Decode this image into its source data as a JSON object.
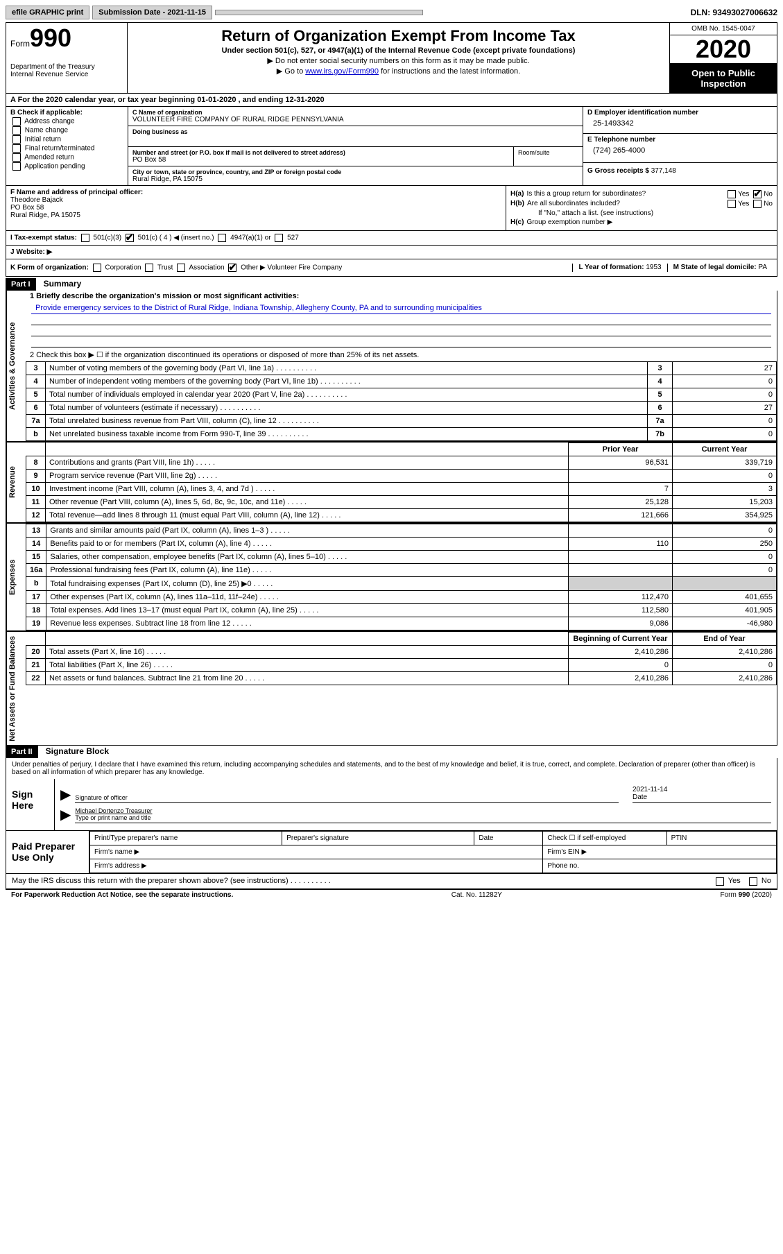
{
  "topbar": {
    "efile_btn": "efile GRAPHIC print",
    "submission_label": "Submission Date - 2021-11-15",
    "dln": "DLN: 93493027006632"
  },
  "header": {
    "form_label": "Form",
    "form_number": "990",
    "dept": "Department of the Treasury\nInternal Revenue Service",
    "title": "Return of Organization Exempt From Income Tax",
    "subtitle": "Under section 501(c), 527, or 4947(a)(1) of the Internal Revenue Code (except private foundations)",
    "note1": "▶ Do not enter social security numbers on this form as it may be made public.",
    "note2_pre": "▶ Go to ",
    "note2_link": "www.irs.gov/Form990",
    "note2_post": " for instructions and the latest information.",
    "omb": "OMB No. 1545-0047",
    "year": "2020",
    "inspection": "Open to Public Inspection"
  },
  "period": "A For the 2020 calendar year, or tax year beginning 01-01-2020     , and ending 12-31-2020",
  "section_b": {
    "label": "B Check if applicable:",
    "opts": [
      "Address change",
      "Name change",
      "Initial return",
      "Final return/terminated",
      "Amended return",
      "Application pending"
    ]
  },
  "section_c": {
    "name_label": "C Name of organization",
    "name": "VOLUNTEER FIRE COMPANY OF RURAL RIDGE PENNSYLVANIA",
    "dba_label": "Doing business as",
    "dba": "",
    "street_label": "Number and street (or P.O. box if mail is not delivered to street address)",
    "street": "PO Box 58",
    "suite_label": "Room/suite",
    "city_label": "City or town, state or province, country, and ZIP or foreign postal code",
    "city": "Rural Ridge, PA  15075"
  },
  "section_d": {
    "ein_label": "D Employer identification number",
    "ein": "25-1493342",
    "phone_label": "E Telephone number",
    "phone": "(724) 265-4000",
    "gross_label": "G Gross receipts $",
    "gross": "377,148"
  },
  "section_f": {
    "label": "F Name and address of principal officer:",
    "name": "Theodore Bajack",
    "street": "PO Box 58",
    "city": "Rural Ridge, PA  15075"
  },
  "section_h": {
    "ha_label": "H(a)",
    "ha_text": "Is this a group return for subordinates?",
    "hb_label": "H(b)",
    "hb_text": "Are all subordinates included?",
    "hb_note": "If \"No,\" attach a list. (see instructions)",
    "hc_label": "H(c)",
    "hc_text": "Group exemption number ▶"
  },
  "section_i": {
    "label": "I   Tax-exempt status:",
    "opts": [
      "501(c)(3)",
      "501(c) ( 4 ) ◀ (insert no.)",
      "4947(a)(1) or",
      "527"
    ]
  },
  "section_j": {
    "label": "J   Website: ▶"
  },
  "section_k": {
    "label": "K Form of organization:",
    "opts": [
      "Corporation",
      "Trust",
      "Association",
      "Other ▶"
    ],
    "other_val": "Volunteer Fire Company",
    "l_label": "L Year of formation:",
    "l_val": "1953",
    "m_label": "M State of legal domicile:",
    "m_val": "PA"
  },
  "part1": {
    "header": "Part I",
    "title": "Summary",
    "line1_label": "1  Briefly describe the organization's mission or most significant activities:",
    "line1_text": "Provide emergency services to the District of Rural Ridge, Indiana Township, Allegheny County, PA and to surrounding municipalities",
    "line2": "2   Check this box ▶ ☐  if the organization discontinued its operations or disposed of more than 25% of its net assets.",
    "governance_rows": [
      {
        "num": "3",
        "desc": "Number of voting members of the governing body (Part VI, line 1a)",
        "box": "3",
        "val": "27"
      },
      {
        "num": "4",
        "desc": "Number of independent voting members of the governing body (Part VI, line 1b)",
        "box": "4",
        "val": "0"
      },
      {
        "num": "5",
        "desc": "Total number of individuals employed in calendar year 2020 (Part V, line 2a)",
        "box": "5",
        "val": "0"
      },
      {
        "num": "6",
        "desc": "Total number of volunteers (estimate if necessary)",
        "box": "6",
        "val": "27"
      },
      {
        "num": "7a",
        "desc": "Total unrelated business revenue from Part VIII, column (C), line 12",
        "box": "7a",
        "val": "0"
      },
      {
        "num": "b",
        "desc": "Net unrelated business taxable income from Form 990-T, line 39",
        "box": "7b",
        "val": "0"
      }
    ],
    "two_col_header": {
      "prior": "Prior Year",
      "current": "Current Year"
    },
    "revenue_rows": [
      {
        "num": "8",
        "desc": "Contributions and grants (Part VIII, line 1h)",
        "prior": "96,531",
        "current": "339,719"
      },
      {
        "num": "9",
        "desc": "Program service revenue (Part VIII, line 2g)",
        "prior": "",
        "current": "0"
      },
      {
        "num": "10",
        "desc": "Investment income (Part VIII, column (A), lines 3, 4, and 7d )",
        "prior": "7",
        "current": "3"
      },
      {
        "num": "11",
        "desc": "Other revenue (Part VIII, column (A), lines 5, 6d, 8c, 9c, 10c, and 11e)",
        "prior": "25,128",
        "current": "15,203"
      },
      {
        "num": "12",
        "desc": "Total revenue—add lines 8 through 11 (must equal Part VIII, column (A), line 12)",
        "prior": "121,666",
        "current": "354,925"
      }
    ],
    "expense_rows": [
      {
        "num": "13",
        "desc": "Grants and similar amounts paid (Part IX, column (A), lines 1–3 )",
        "prior": "",
        "current": "0"
      },
      {
        "num": "14",
        "desc": "Benefits paid to or for members (Part IX, column (A), line 4)",
        "prior": "110",
        "current": "250"
      },
      {
        "num": "15",
        "desc": "Salaries, other compensation, employee benefits (Part IX, column (A), lines 5–10)",
        "prior": "",
        "current": "0"
      },
      {
        "num": "16a",
        "desc": "Professional fundraising fees (Part IX, column (A), line 11e)",
        "prior": "",
        "current": "0"
      },
      {
        "num": "b",
        "desc": "Total fundraising expenses (Part IX, column (D), line 25) ▶0",
        "prior": "SHADED",
        "current": "SHADED"
      },
      {
        "num": "17",
        "desc": "Other expenses (Part IX, column (A), lines 11a–11d, 11f–24e)",
        "prior": "112,470",
        "current": "401,655"
      },
      {
        "num": "18",
        "desc": "Total expenses. Add lines 13–17 (must equal Part IX, column (A), line 25)",
        "prior": "112,580",
        "current": "401,905"
      },
      {
        "num": "19",
        "desc": "Revenue less expenses. Subtract line 18 from line 12",
        "prior": "9,086",
        "current": "-46,980"
      }
    ],
    "net_header": {
      "begin": "Beginning of Current Year",
      "end": "End of Year"
    },
    "net_rows": [
      {
        "num": "20",
        "desc": "Total assets (Part X, line 16)",
        "prior": "2,410,286",
        "current": "2,410,286"
      },
      {
        "num": "21",
        "desc": "Total liabilities (Part X, line 26)",
        "prior": "0",
        "current": "0"
      },
      {
        "num": "22",
        "desc": "Net assets or fund balances. Subtract line 21 from line 20",
        "prior": "2,410,286",
        "current": "2,410,286"
      }
    ]
  },
  "part2": {
    "header": "Part II",
    "title": "Signature Block",
    "perjury": "Under penalties of perjury, I declare that I have examined this return, including accompanying schedules and statements, and to the best of my knowledge and belief, it is true, correct, and complete. Declaration of preparer (other than officer) is based on all information of which preparer has any knowledge.",
    "sign_here": "Sign Here",
    "sig_officer_label": "Signature of officer",
    "date_label": "Date",
    "sig_date": "2021-11-14",
    "officer_name": "Michael Dortenzo Treasurer",
    "officer_name_label": "Type or print name and title",
    "paid_label": "Paid Preparer Use Only",
    "prep_name_label": "Print/Type preparer's name",
    "prep_sig_label": "Preparer's signature",
    "prep_date_label": "Date",
    "prep_check_label": "Check ☐ if self-employed",
    "ptin_label": "PTIN",
    "firm_name_label": "Firm's name      ▶",
    "firm_ein_label": "Firm's EIN ▶",
    "firm_addr_label": "Firm's address ▶",
    "phone_label": "Phone no.",
    "discuss": "May the IRS discuss this return with the preparer shown above? (see instructions)"
  },
  "footer": {
    "left": "For Paperwork Reduction Act Notice, see the separate instructions.",
    "center": "Cat. No. 11282Y",
    "right": "Form 990 (2020)"
  },
  "side_labels": {
    "gov": "Activities & Governance",
    "rev": "Revenue",
    "exp": "Expenses",
    "net": "Net Assets or Fund Balances"
  }
}
